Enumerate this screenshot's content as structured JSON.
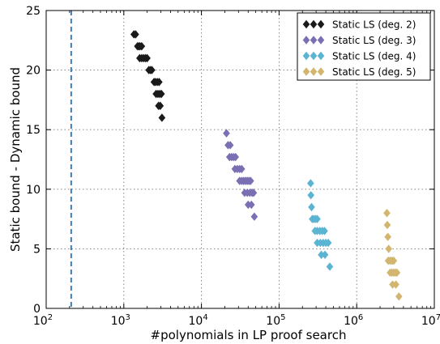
{
  "chart_data": {
    "type": "scatter",
    "xlabel": "#polynomials in LP proof search",
    "ylabel": "Static bound - Dynamic bound",
    "xscale": "log",
    "xlim": [
      100,
      10000000
    ],
    "ylim": [
      0,
      25
    ],
    "x_tick_labels": [
      "10^2",
      "10^3",
      "10^4",
      "10^5",
      "10^6",
      "10^7"
    ],
    "y_tick_labels": [
      "0",
      "5",
      "10",
      "15",
      "20",
      "25"
    ],
    "y_ticks": [
      0,
      5,
      10,
      15,
      20,
      25
    ],
    "grid": true,
    "legend_position": "top-right",
    "marker": "diamond",
    "reference_line": {
      "x": 210,
      "style": "dashed",
      "color": "#3d7cc0"
    },
    "series": [
      {
        "name": "Static LS (deg. 2)",
        "color": "#1a1a1a",
        "points": [
          [
            1350,
            23
          ],
          [
            1420,
            23
          ],
          [
            1500,
            22
          ],
          [
            1560,
            22
          ],
          [
            1620,
            22
          ],
          [
            1700,
            22
          ],
          [
            1600,
            21
          ],
          [
            1700,
            21
          ],
          [
            1800,
            21
          ],
          [
            1900,
            21
          ],
          [
            2000,
            21
          ],
          [
            2100,
            20
          ],
          [
            2200,
            20
          ],
          [
            2300,
            20
          ],
          [
            2450,
            19
          ],
          [
            2550,
            19
          ],
          [
            2700,
            19
          ],
          [
            2850,
            19
          ],
          [
            2600,
            18
          ],
          [
            2750,
            18
          ],
          [
            2900,
            18
          ],
          [
            3050,
            18
          ],
          [
            2800,
            17
          ],
          [
            2950,
            17
          ],
          [
            3100,
            16
          ]
        ]
      },
      {
        "name": "Static LS (deg. 3)",
        "color": "#7b6fb4",
        "points": [
          [
            21000,
            14.7
          ],
          [
            22000,
            13.7
          ],
          [
            23500,
            13.7
          ],
          [
            23000,
            12.7
          ],
          [
            24500,
            12.7
          ],
          [
            26000,
            12.7
          ],
          [
            27500,
            12.7
          ],
          [
            27000,
            11.7
          ],
          [
            29000,
            11.7
          ],
          [
            31000,
            11.7
          ],
          [
            33000,
            11.7
          ],
          [
            31000,
            10.7
          ],
          [
            33000,
            10.7
          ],
          [
            35000,
            10.7
          ],
          [
            37000,
            10.7
          ],
          [
            39000,
            10.7
          ],
          [
            41000,
            10.7
          ],
          [
            43000,
            10.7
          ],
          [
            36000,
            9.7
          ],
          [
            39000,
            9.7
          ],
          [
            42000,
            9.7
          ],
          [
            45000,
            9.7
          ],
          [
            47000,
            9.7
          ],
          [
            40000,
            8.7
          ],
          [
            44000,
            8.7
          ],
          [
            48000,
            7.7
          ]
        ]
      },
      {
        "name": "Static LS (deg. 4)",
        "color": "#5bb4d2",
        "points": [
          [
            255000,
            10.5
          ],
          [
            257000,
            9.5
          ],
          [
            262000,
            8.5
          ],
          [
            268000,
            7.5
          ],
          [
            280000,
            7.5
          ],
          [
            295000,
            7.5
          ],
          [
            310000,
            7.5
          ],
          [
            290000,
            6.5
          ],
          [
            310000,
            6.5
          ],
          [
            335000,
            6.5
          ],
          [
            360000,
            6.5
          ],
          [
            385000,
            6.5
          ],
          [
            310000,
            5.5
          ],
          [
            340000,
            5.5
          ],
          [
            370000,
            5.5
          ],
          [
            400000,
            5.5
          ],
          [
            430000,
            5.5
          ],
          [
            350000,
            4.5
          ],
          [
            390000,
            4.5
          ],
          [
            450000,
            3.5
          ]
        ]
      },
      {
        "name": "Static LS (deg. 5)",
        "color": "#d2b56e",
        "points": [
          [
            2450000,
            8
          ],
          [
            2480000,
            7
          ],
          [
            2520000,
            6
          ],
          [
            2580000,
            5
          ],
          [
            2550000,
            4
          ],
          [
            2700000,
            4
          ],
          [
            2850000,
            4
          ],
          [
            3000000,
            4
          ],
          [
            2700000,
            3
          ],
          [
            2850000,
            3
          ],
          [
            3000000,
            3
          ],
          [
            3150000,
            3
          ],
          [
            3300000,
            3
          ],
          [
            2900000,
            2
          ],
          [
            3200000,
            2
          ],
          [
            3500000,
            1
          ]
        ]
      }
    ]
  }
}
